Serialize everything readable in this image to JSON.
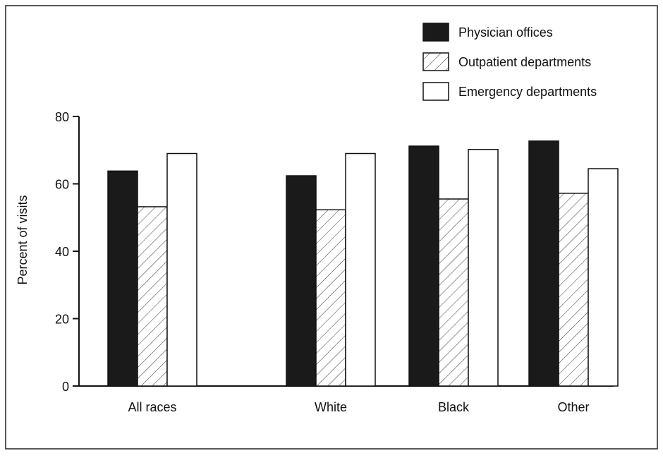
{
  "chart_data": {
    "type": "bar",
    "categories": [
      "All races",
      "White",
      "Black",
      "Other"
    ],
    "series": [
      {
        "name": "Physician offices",
        "values": [
          63.8,
          62.4,
          71.2,
          72.7
        ],
        "fill": "solid",
        "color": "#1a1a1a"
      },
      {
        "name": "Outpatient departments",
        "values": [
          53.2,
          52.3,
          55.5,
          57.2
        ],
        "fill": "hatched",
        "color": "#ffffff"
      },
      {
        "name": "Emergency departments",
        "values": [
          69.0,
          69.0,
          70.2,
          64.5
        ],
        "fill": "open",
        "color": "#ffffff"
      }
    ],
    "title": "",
    "xlabel": "",
    "ylabel": "Percent of visits",
    "ylim": [
      0,
      80
    ],
    "yticks": [
      0,
      20,
      40,
      60,
      80
    ],
    "grid": false,
    "legend_position": "top-right"
  }
}
